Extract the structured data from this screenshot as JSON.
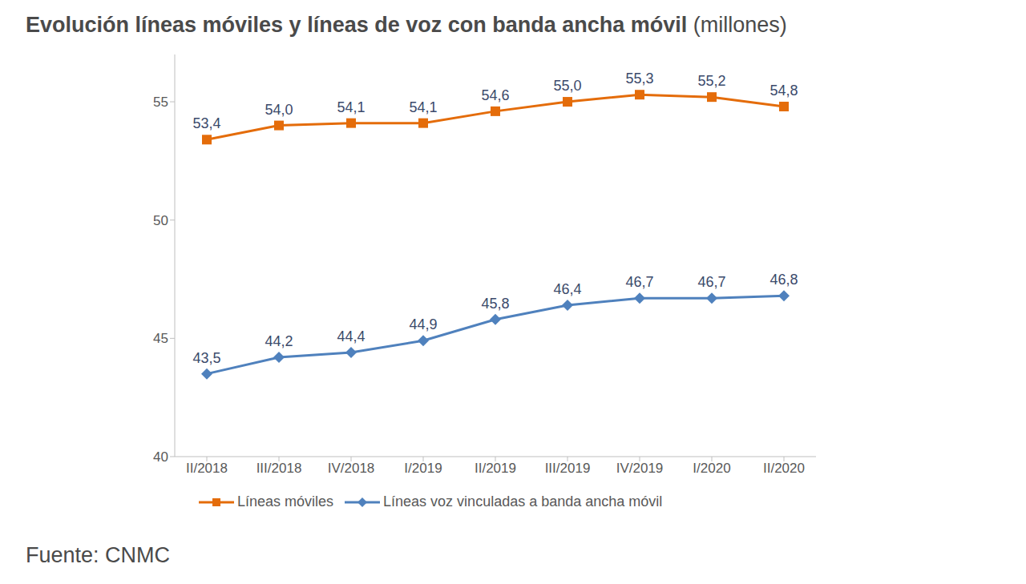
{
  "chart_data": {
    "type": "line",
    "title": "Evolución líneas móviles y líneas de voz con banda ancha móvil",
    "subtitle": "(millones)",
    "annotations": [
      "Fuente: CNMC"
    ],
    "categories": [
      "II/2018",
      "III/2018",
      "IV/2018",
      "I/2019",
      "II/2019",
      "III/2019",
      "IV/2019",
      "I/2020",
      "II/2020"
    ],
    "series": [
      {
        "name": "Líneas móviles",
        "color": "#e46c0a",
        "marker": "square",
        "values": [
          53.4,
          54.0,
          54.1,
          54.1,
          54.6,
          55.0,
          55.3,
          55.2,
          54.8
        ],
        "value_labels": [
          "53,4",
          "54,0",
          "54,1",
          "54,1",
          "54,6",
          "55,0",
          "55,3",
          "55,2",
          "54,8"
        ]
      },
      {
        "name": "Líneas voz vinculadas a banda ancha móvil",
        "color": "#4f81bd",
        "marker": "diamond",
        "values": [
          43.5,
          44.2,
          44.4,
          44.9,
          45.8,
          46.4,
          46.7,
          46.7,
          46.8
        ],
        "value_labels": [
          "43,5",
          "44,2",
          "44,4",
          "44,9",
          "45,8",
          "46,4",
          "46,7",
          "46,7",
          "46,8"
        ]
      }
    ],
    "ylim": [
      40,
      57
    ],
    "yticks": [
      40,
      45,
      50,
      55
    ],
    "grid": false,
    "data_labels": true,
    "legend": "bottom"
  }
}
